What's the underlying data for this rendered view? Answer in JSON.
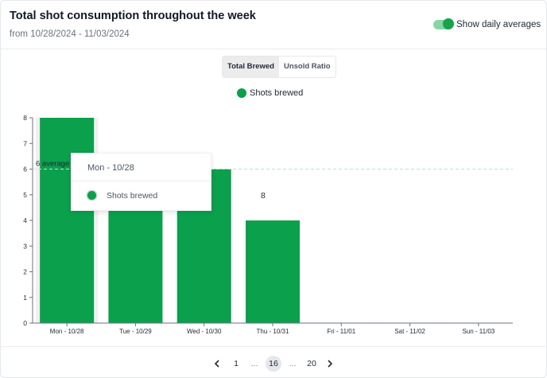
{
  "header": {
    "title": "Total shot consumption throughout the week",
    "subtitle": "from 10/28/2024 - 11/03/2024",
    "toggle_label": "Show daily averages",
    "toggle_on": true
  },
  "tabs": [
    {
      "label": "Total Brewed",
      "active": true
    },
    {
      "label": "Unsold Ratio",
      "active": false
    }
  ],
  "colors": {
    "bar": "#0ba04c",
    "average_line": "#bfe3c9"
  },
  "average_label": "6 average",
  "tooltip": {
    "title": "Mon - 10/28",
    "series_label": "Shots brewed",
    "value": "8"
  },
  "pagination": {
    "prev_icon": "chevron-left-icon",
    "next_icon": "chevron-right-icon",
    "first": "1",
    "ellipsis": "...",
    "current": "16",
    "last": "20"
  },
  "chart_data": {
    "type": "bar",
    "categories": [
      "Mon - 10/28",
      "Tue - 10/29",
      "Wed - 10/30",
      "Thu - 10/31",
      "Fri - 11/01",
      "Sat - 11/02",
      "Sun - 11/03"
    ],
    "series": [
      {
        "name": "Shots brewed",
        "values": [
          8,
          6,
          6,
          4,
          0,
          0,
          0
        ]
      }
    ],
    "average": 6,
    "ylim": [
      0,
      8
    ],
    "yticks": [
      0,
      1,
      2,
      3,
      4,
      5,
      6,
      7,
      8
    ],
    "legend": "top-center",
    "grid": false,
    "highlighted_category": "Mon - 10/28"
  }
}
